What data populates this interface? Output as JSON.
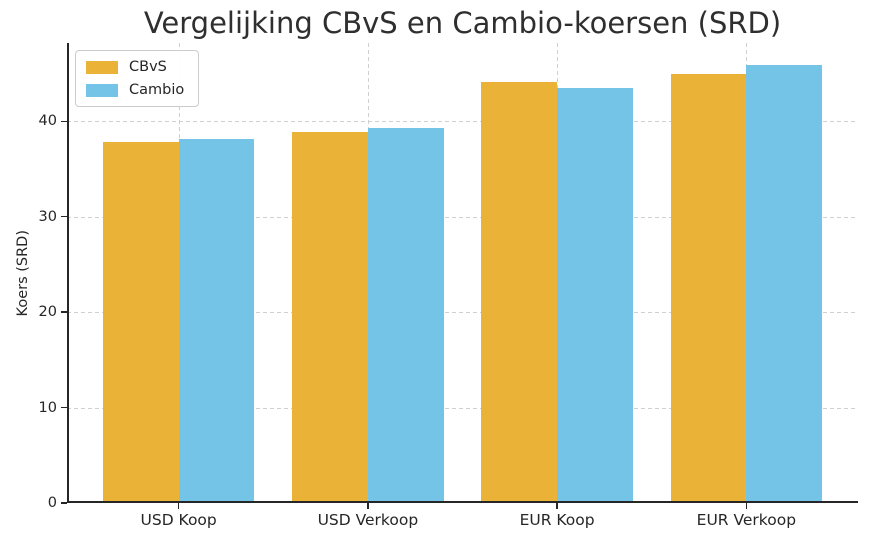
{
  "chart_data": {
    "type": "bar",
    "title": "Vergelijking CBvS en Cambio-koersen (SRD)",
    "xlabel": "",
    "ylabel": "Koers (SRD)",
    "categories": [
      "USD Koop",
      "USD Verkoop",
      "EUR Koop",
      "EUR Verkoop"
    ],
    "series": [
      {
        "name": "CBvS",
        "color": "#EAB236",
        "values": [
          37.8,
          38.9,
          44.1,
          45.0
        ]
      },
      {
        "name": "Cambio",
        "color": "#74C4E8",
        "values": [
          38.1,
          39.3,
          43.5,
          45.9
        ]
      }
    ],
    "yticks": [
      0,
      10,
      20,
      30,
      40
    ],
    "ylim": [
      0,
      48.2
    ],
    "grid": {
      "horizontal": true,
      "vertical": true,
      "style": "dashed",
      "color": "#cdcdcd"
    },
    "legend": {
      "position": "upper-left",
      "entries": [
        "CBvS",
        "Cambio"
      ]
    },
    "colors": {
      "text": "#262626",
      "spine": "#262626",
      "background": "#ffffff"
    }
  }
}
